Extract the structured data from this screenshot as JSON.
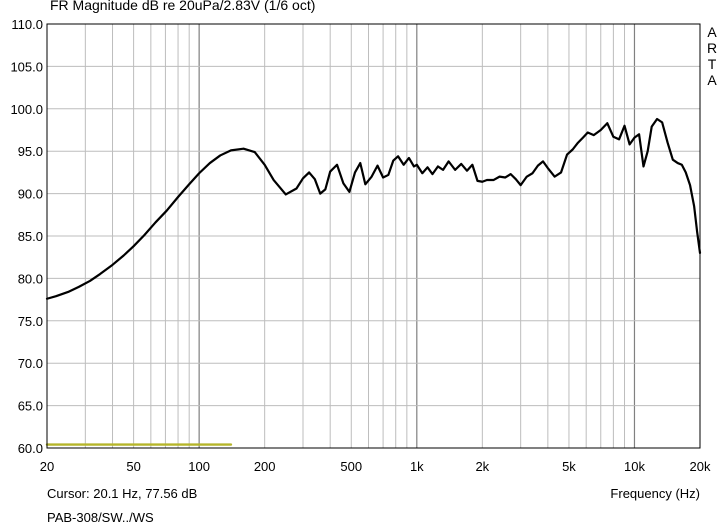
{
  "chart_data": {
    "type": "line",
    "title": "FR Magnitude dB re 20uPa/2.83V (1/6 oct)",
    "xlabel": "Frequency (Hz)",
    "ylabel": "",
    "xscale": "log",
    "xlim": [
      20,
      20000
    ],
    "ylim": [
      60,
      110
    ],
    "grid": true,
    "yticks": [
      60,
      65,
      70,
      75,
      80,
      85,
      90,
      95,
      100,
      105,
      110
    ],
    "ytick_labels": [
      "60.0",
      "65.0",
      "70.0",
      "75.0",
      "80.0",
      "85.0",
      "90.0",
      "95.0",
      "100.0",
      "105.0",
      "110.0"
    ],
    "xticks": [
      20,
      50,
      100,
      200,
      500,
      1000,
      2000,
      5000,
      10000,
      20000
    ],
    "xtick_labels": [
      "20",
      "50",
      "100",
      "200",
      "500",
      "1k",
      "2k",
      "5k",
      "10k",
      "20k"
    ],
    "series": [
      {
        "color": "#000000",
        "x": [
          20,
          22,
          25,
          28,
          31.5,
          35,
          40,
          45,
          50,
          56,
          63,
          71,
          80,
          90,
          100,
          112,
          125,
          140,
          160,
          180,
          200,
          220,
          250,
          280,
          300,
          320,
          340,
          360,
          380,
          400,
          430,
          460,
          490,
          520,
          550,
          580,
          620,
          660,
          700,
          740,
          780,
          820,
          870,
          920,
          970,
          1000,
          1060,
          1120,
          1180,
          1250,
          1320,
          1400,
          1500,
          1600,
          1700,
          1800,
          1900,
          2000,
          2100,
          2250,
          2400,
          2550,
          2700,
          2850,
          3000,
          3200,
          3400,
          3600,
          3800,
          4000,
          4300,
          4600,
          4900,
          5200,
          5500,
          5800,
          6100,
          6500,
          7000,
          7500,
          8000,
          8500,
          9000,
          9500,
          10000,
          10500,
          11000,
          11500,
          12000,
          12700,
          13400,
          14200,
          15000,
          15800,
          16500,
          17200,
          18000,
          18800,
          19400,
          20000
        ],
        "y": [
          77.6,
          77.9,
          78.4,
          79.0,
          79.7,
          80.5,
          81.6,
          82.7,
          83.8,
          85.1,
          86.6,
          88.0,
          89.6,
          91.1,
          92.4,
          93.6,
          94.5,
          95.1,
          95.3,
          94.9,
          93.4,
          91.6,
          89.9,
          90.6,
          91.8,
          92.5,
          91.7,
          90.0,
          90.5,
          92.6,
          93.4,
          91.2,
          90.2,
          92.5,
          93.6,
          91.1,
          92.0,
          93.3,
          91.9,
          92.2,
          93.9,
          94.4,
          93.4,
          94.2,
          93.2,
          93.4,
          92.4,
          93.1,
          92.3,
          93.2,
          92.8,
          93.8,
          92.8,
          93.5,
          92.7,
          93.4,
          91.5,
          91.4,
          91.6,
          91.6,
          92.0,
          91.9,
          92.3,
          91.7,
          91.0,
          92.0,
          92.4,
          93.3,
          93.8,
          93.0,
          92.0,
          92.5,
          94.6,
          95.2,
          96.0,
          96.6,
          97.2,
          96.9,
          97.5,
          98.3,
          96.7,
          96.4,
          98.0,
          95.8,
          96.6,
          97.0,
          93.2,
          95.0,
          97.9,
          98.8,
          98.4,
          96.0,
          94.0,
          93.6,
          93.4,
          92.5,
          91.0,
          88.5,
          85.5,
          83.0
        ]
      },
      {
        "color": "#b5b52a",
        "x": [
          20,
          140
        ],
        "y": [
          60.4,
          60.4
        ]
      }
    ]
  },
  "cursor_text": "Cursor: 20.1 Hz, 77.56 dB",
  "device_text": "PAB-308/SW../WS",
  "brand_letters": [
    "A",
    "R",
    "T",
    "A"
  ]
}
